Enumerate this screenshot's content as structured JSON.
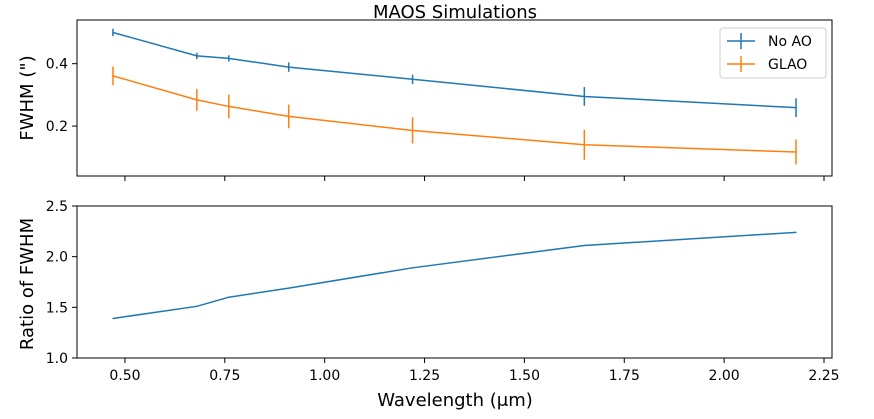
{
  "colors": {
    "no_ao": "#1f77b4",
    "glao": "#ff7f0e",
    "frame": "#000000"
  },
  "chart_data": [
    {
      "type": "line",
      "title": "MAOS Simulations",
      "xlabel": "",
      "ylabel": "FWHM (\")",
      "xlim": [
        0.38,
        2.27
      ],
      "ylim": [
        0.04,
        0.54
      ],
      "yticks": [
        0.2,
        0.4
      ],
      "ytick_labels": [
        "0.2",
        "0.4"
      ],
      "xticks": [
        0.5,
        0.75,
        1.0,
        1.25,
        1.5,
        1.75,
        2.0,
        2.25
      ],
      "legend": [
        "No AO",
        "GLAO"
      ],
      "legend_loc": "upper right",
      "grid": false,
      "x": [
        0.47,
        0.68,
        0.76,
        0.91,
        1.22,
        1.65,
        2.18
      ],
      "series": [
        {
          "name": "No AO",
          "values": [
            0.5,
            0.425,
            0.417,
            0.389,
            0.35,
            0.295,
            0.259
          ],
          "errors": [
            0.012,
            0.01,
            0.01,
            0.015,
            0.015,
            0.03,
            0.03
          ]
        },
        {
          "name": "GLAO",
          "values": [
            0.361,
            0.284,
            0.263,
            0.231,
            0.186,
            0.14,
            0.117
          ],
          "errors": [
            0.03,
            0.035,
            0.038,
            0.038,
            0.042,
            0.048,
            0.04
          ]
        }
      ]
    },
    {
      "type": "line",
      "xlabel": "Wavelength (μm)",
      "ylabel": "Ratio of FWHM",
      "xlim": [
        0.38,
        2.27
      ],
      "ylim": [
        1.0,
        2.5
      ],
      "yticks": [
        1.0,
        1.5,
        2.0,
        2.5
      ],
      "ytick_labels": [
        "1.0",
        "1.5",
        "2.0",
        "2.5"
      ],
      "xticks": [
        0.5,
        0.75,
        1.0,
        1.25,
        1.5,
        1.75,
        2.0,
        2.25
      ],
      "xtick_labels": [
        "0.50",
        "0.75",
        "1.00",
        "1.25",
        "1.50",
        "1.75",
        "2.00",
        "2.25"
      ],
      "grid": false,
      "x": [
        0.47,
        0.68,
        0.76,
        0.91,
        1.22,
        1.65,
        2.18
      ],
      "series": [
        {
          "values": [
            1.39,
            1.51,
            1.6,
            1.69,
            1.89,
            2.11,
            2.24
          ]
        }
      ]
    }
  ]
}
